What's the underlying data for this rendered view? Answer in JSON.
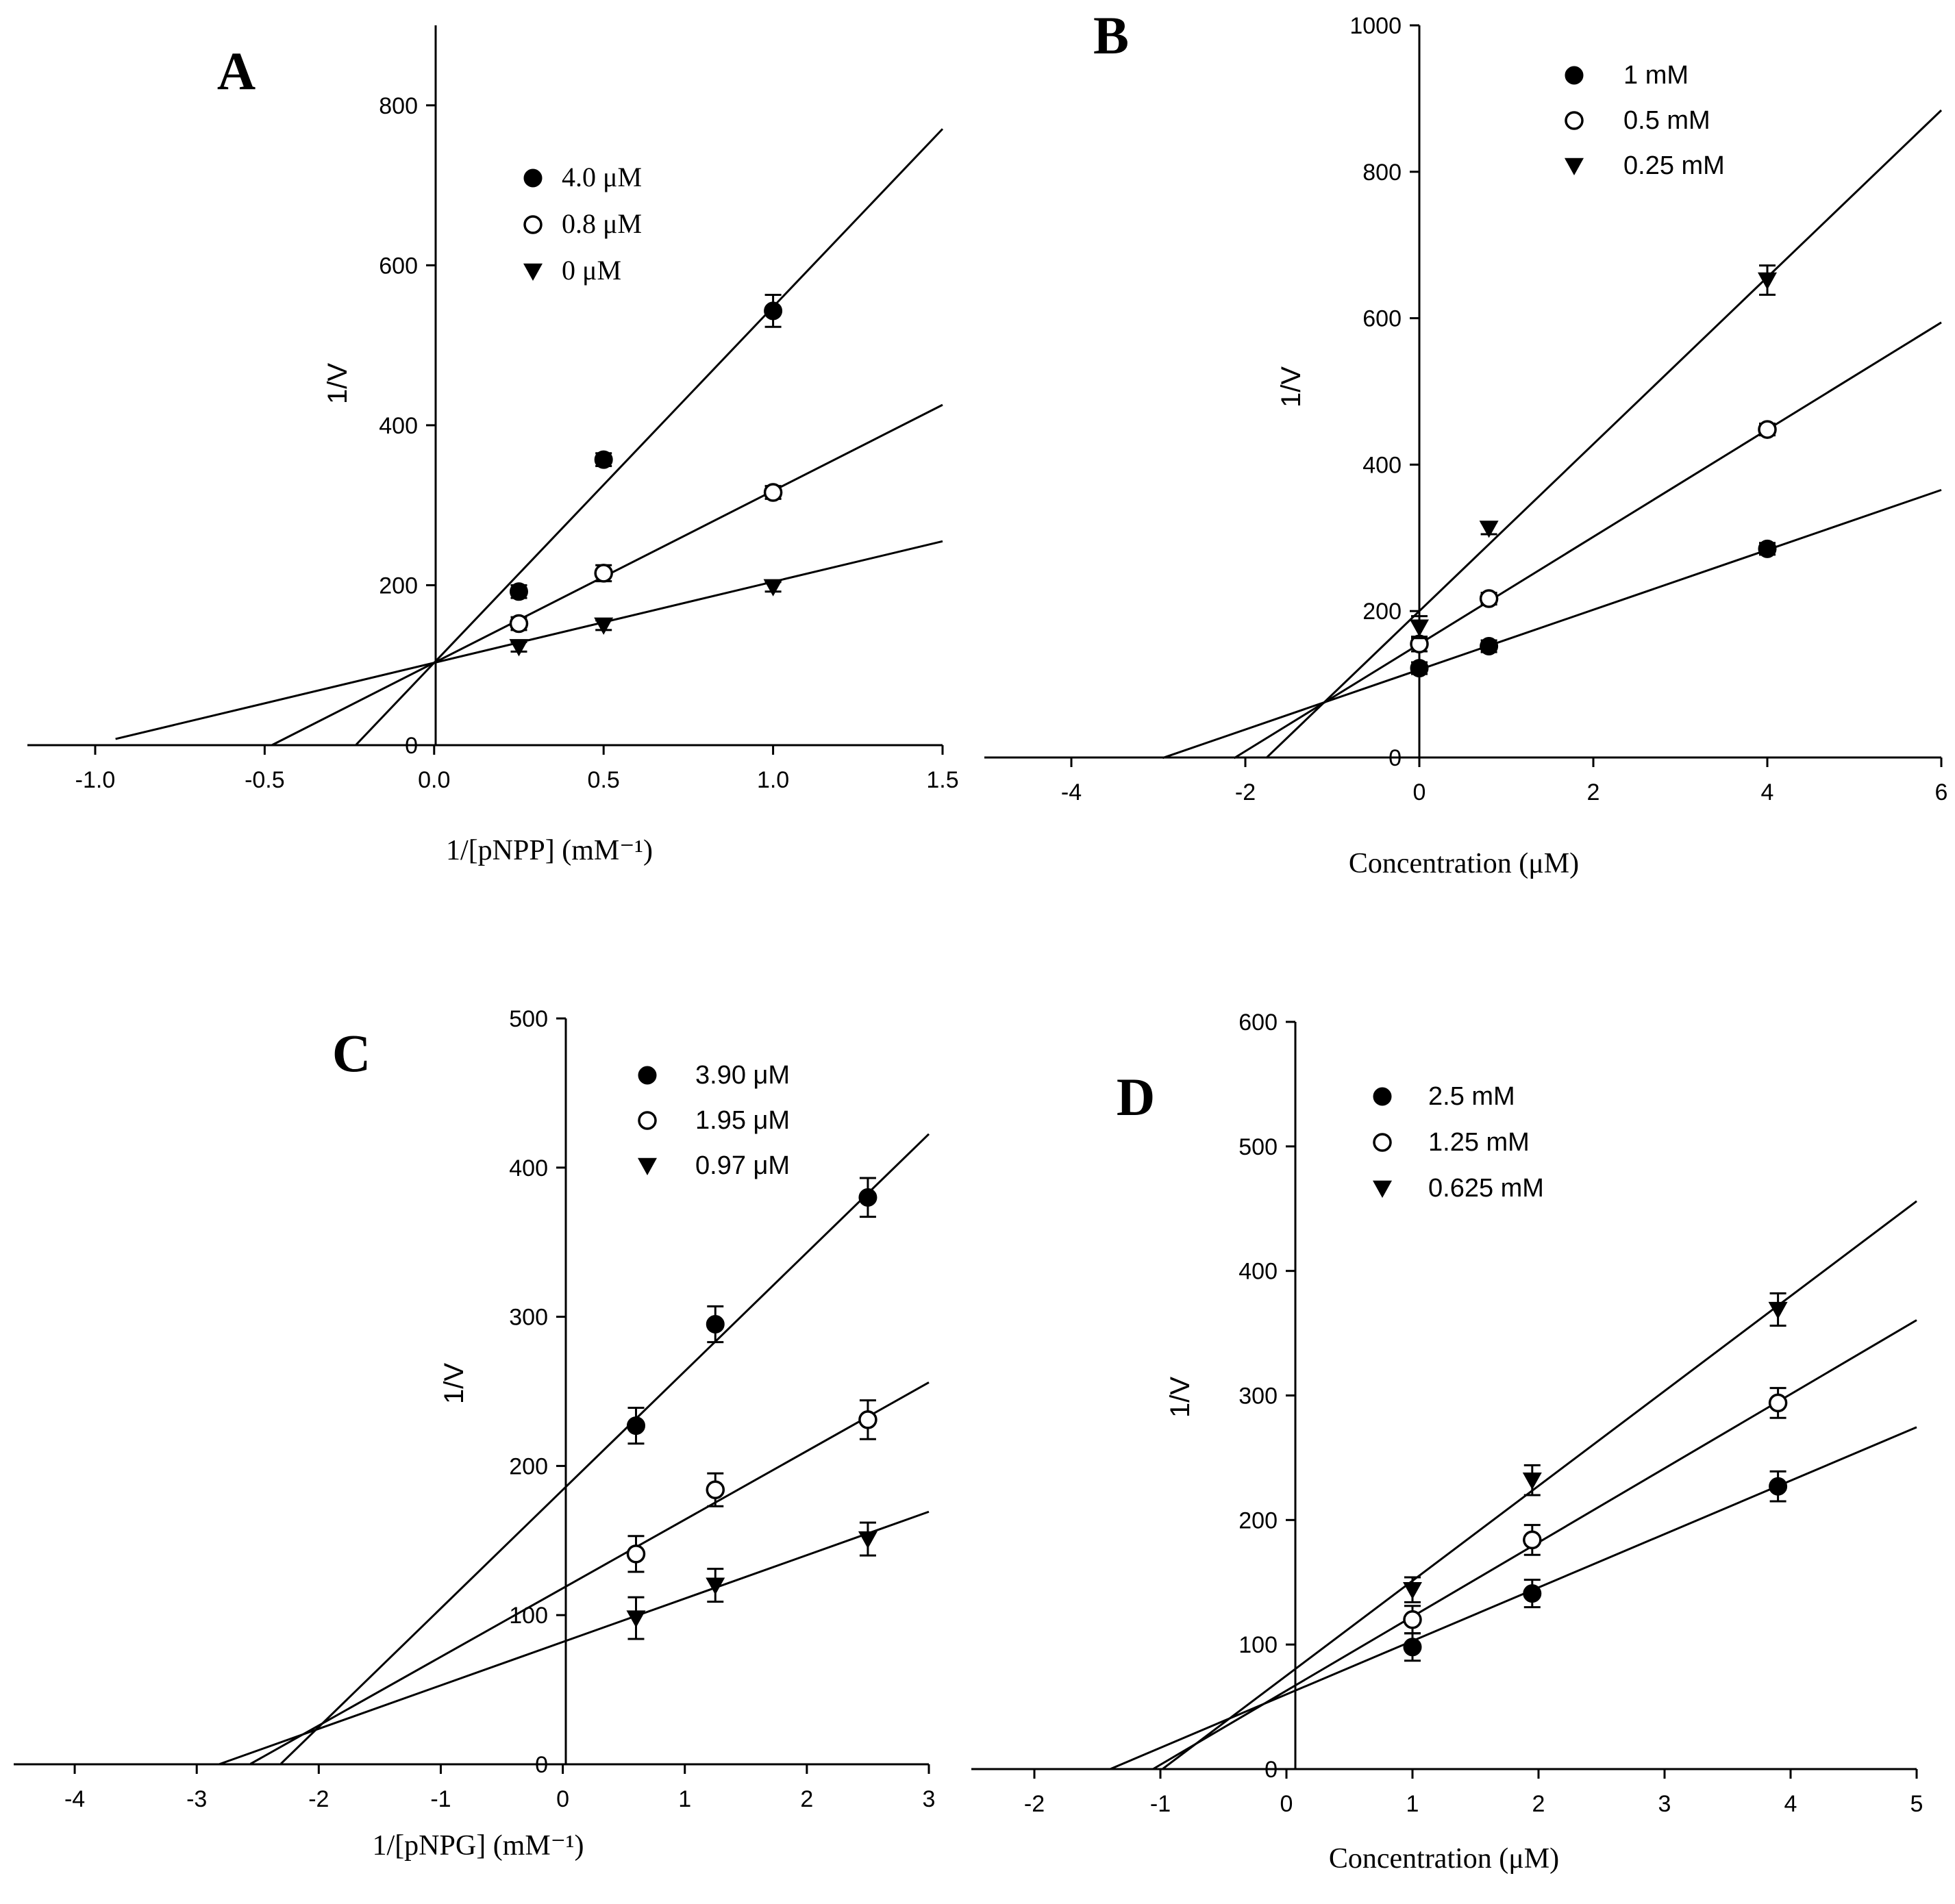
{
  "chart_data": [
    {
      "id": "A",
      "type": "line",
      "panel_label": "A",
      "xlabel": "1/[pNPP] (mM⁻¹)",
      "ylabel": "1/V",
      "xlim": [
        -1.2,
        1.5
      ],
      "ylim": [
        0,
        900
      ],
      "xticks": [
        -1.0,
        -0.5,
        0.0,
        0.5,
        1.0,
        1.5
      ],
      "xtick_labels": [
        "-1.0",
        "-0.5",
        "0.0",
        "0.5",
        "1.0",
        "1.5"
      ],
      "yticks": [
        0,
        200,
        400,
        600,
        800
      ],
      "ytick_labels": [
        "0",
        "200",
        "400",
        "600",
        "800"
      ],
      "legend_placement": "top-left of plot area",
      "series": [
        {
          "name": "4.0 μM",
          "marker": "filled-circle",
          "x": [
            0.25,
            0.5,
            1.0
          ],
          "y": [
            192,
            357,
            543
          ],
          "err": [
            8,
            8,
            20
          ],
          "fit": {
            "slope": 445,
            "intercept": 103,
            "x_start": -0.23,
            "x_end": 1.5
          }
        },
        {
          "name": "0.8 μM",
          "marker": "open-circle",
          "x": [
            0.25,
            0.5,
            1.0
          ],
          "y": [
            152,
            215,
            316
          ],
          "err": [
            8,
            10,
            8
          ],
          "fit": {
            "slope": 215,
            "intercept": 103,
            "x_start": -0.48,
            "x_end": 1.5
          }
        },
        {
          "name": "0 μM",
          "marker": "filled-triangle-down",
          "x": [
            0.25,
            0.5,
            1.0
          ],
          "y": [
            123,
            150,
            198
          ],
          "err": [
            6,
            6,
            6
          ],
          "fit": {
            "slope": 101.3,
            "intercept": 103,
            "x_start": -0.94,
            "x_end": 1.5
          }
        }
      ]
    },
    {
      "id": "B",
      "type": "line",
      "panel_label": "B",
      "xlabel": "Concentration (μM)",
      "ylabel": "1/V",
      "xlim": [
        -5,
        6
      ],
      "ylim": [
        0,
        1000
      ],
      "xticks": [
        -4,
        -2,
        0,
        2,
        4,
        6
      ],
      "xtick_labels": [
        "-4",
        "-2",
        "0",
        "2",
        "4",
        "6"
      ],
      "yticks": [
        0,
        200,
        400,
        600,
        800,
        1000
      ],
      "ytick_labels": [
        "0",
        "200",
        "400",
        "600",
        "800",
        "1000"
      ],
      "legend_placement": "top-right of y-axis",
      "series": [
        {
          "name": "1 mM",
          "marker": "filled-circle",
          "x": [
            0,
            0.8,
            4.0
          ],
          "y": [
            122,
            152,
            285
          ],
          "err": [
            8,
            8,
            8
          ],
          "fit": {
            "slope": 40.9,
            "intercept": 120,
            "x_start": -2.95,
            "x_end": 6
          }
        },
        {
          "name": "0.5 mM",
          "marker": "open-circle",
          "x": [
            0,
            0.8,
            4.0
          ],
          "y": [
            155,
            217,
            448
          ],
          "err": [
            10,
            8,
            8
          ],
          "fit": {
            "slope": 73.2,
            "intercept": 155,
            "x_start": -2.13,
            "x_end": 6
          }
        },
        {
          "name": "0.25 mM",
          "marker": "filled-triangle-down",
          "x": [
            0,
            0.8,
            4.0
          ],
          "y": [
            178,
            313,
            652
          ],
          "err": [
            15,
            8,
            20
          ],
          "fit": {
            "slope": 114,
            "intercept": 200,
            "x_start": -1.76,
            "x_end": 6
          }
        }
      ]
    },
    {
      "id": "C",
      "type": "line",
      "panel_label": "C",
      "xlabel": "1/[pNPG] (mM⁻¹)",
      "ylabel": "1/V",
      "xlim": [
        -4.5,
        3
      ],
      "ylim": [
        0,
        500
      ],
      "xticks": [
        -4,
        -3,
        -2,
        -1,
        0,
        1,
        2,
        3
      ],
      "xtick_labels": [
        "-4",
        "-3",
        "-2",
        "-1",
        "0",
        "1",
        "2",
        "3"
      ],
      "yticks": [
        0,
        100,
        200,
        300,
        400,
        500
      ],
      "ytick_labels": [
        "0",
        "100",
        "200",
        "300",
        "400",
        "500"
      ],
      "legend_placement": "top-right of y-axis",
      "series": [
        {
          "name": "3.90 μM",
          "marker": "filled-circle",
          "x": [
            0.6,
            1.25,
            2.5
          ],
          "y": [
            227,
            295,
            380
          ],
          "err": [
            12,
            12,
            13
          ],
          "fit": {
            "slope": 79.5,
            "intercept": 184,
            "x_start": -2.31,
            "x_end": 3
          }
        },
        {
          "name": "1.95 μM",
          "marker": "open-circle",
          "x": [
            0.6,
            1.25,
            2.5
          ],
          "y": [
            141,
            184,
            231
          ],
          "err": [
            12,
            11,
            13
          ],
          "fit": {
            "slope": 46,
            "intercept": 118,
            "x_start": -2.56,
            "x_end": 3
          }
        },
        {
          "name": "0.97 μM",
          "marker": "filled-triangle-down",
          "x": [
            0.6,
            1.25,
            2.5
          ],
          "y": [
            98,
            120,
            151
          ],
          "err": [
            14,
            11,
            11
          ],
          "fit": {
            "slope": 29.1,
            "intercept": 82,
            "x_start": -2.82,
            "x_end": 3
          }
        }
      ]
    },
    {
      "id": "D",
      "type": "line",
      "panel_label": "D",
      "xlabel": "Concentration (μM)",
      "ylabel": "1/V",
      "xlim": [
        -2.5,
        5
      ],
      "ylim": [
        0,
        600
      ],
      "xticks": [
        -2,
        -1,
        0,
        1,
        2,
        3,
        4,
        5
      ],
      "xtick_labels": [
        "-2",
        "-1",
        "0",
        "1",
        "2",
        "3",
        "4",
        "5"
      ],
      "yticks": [
        0,
        100,
        200,
        300,
        400,
        500,
        600
      ],
      "ytick_labels": [
        "0",
        "100",
        "200",
        "300",
        "400",
        "500",
        "600"
      ],
      "legend_placement": "top-right of y-axis",
      "series": [
        {
          "name": "2.5 mM",
          "marker": "filled-circle",
          "x": [
            1.0,
            1.95,
            3.9
          ],
          "y": [
            98,
            141,
            227
          ],
          "err": [
            11,
            11,
            12
          ],
          "fit": {
            "slope": 42.9,
            "intercept": 60,
            "x_start": -1.4,
            "x_end": 5
          }
        },
        {
          "name": "1.25 mM",
          "marker": "open-circle",
          "x": [
            1.0,
            1.95,
            3.9
          ],
          "y": [
            120,
            184,
            294
          ],
          "err": [
            11,
            12,
            12
          ],
          "fit": {
            "slope": 59.5,
            "intercept": 63,
            "x_start": -1.06,
            "x_end": 5
          }
        },
        {
          "name": "0.625 mM",
          "marker": "filled-triangle-down",
          "x": [
            1.0,
            1.95,
            3.9
          ],
          "y": [
            144,
            232,
            369
          ],
          "err": [
            10,
            12,
            13
          ],
          "fit": {
            "slope": 76.2,
            "intercept": 75,
            "x_start": -0.98,
            "x_end": 5
          }
        }
      ]
    }
  ]
}
